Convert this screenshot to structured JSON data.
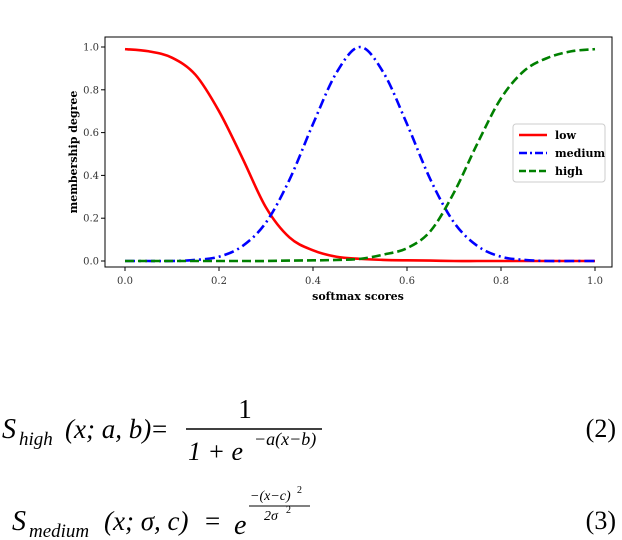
{
  "chart_data": {
    "type": "line",
    "xlabel": "softmax scores",
    "ylabel": "membership degree",
    "xlim": [
      0.0,
      1.0
    ],
    "ylim": [
      0.0,
      1.0
    ],
    "xticks": [
      "0.0",
      "0.2",
      "0.4",
      "0.6",
      "0.8",
      "1.0"
    ],
    "yticks": [
      "0.0",
      "0.2",
      "0.4",
      "0.6",
      "0.8",
      "1.0"
    ],
    "grid": false,
    "legend_position": "right",
    "x": [
      0.0,
      0.05,
      0.1,
      0.15,
      0.2,
      0.25,
      0.3,
      0.35,
      0.4,
      0.45,
      0.5,
      0.55,
      0.6,
      0.65,
      0.7,
      0.75,
      0.8,
      0.85,
      0.9,
      0.95,
      1.0
    ],
    "series": [
      {
        "name": "low",
        "color": "#ff0000",
        "style": "solid",
        "values": [
          0.99,
          0.98,
          0.95,
          0.87,
          0.7,
          0.48,
          0.25,
          0.11,
          0.05,
          0.02,
          0.01,
          0.005,
          0.003,
          0.002,
          0.0,
          0.0,
          0.0,
          0.0,
          0.0,
          0.0,
          0.0
        ]
      },
      {
        "name": "medium",
        "color": "#0000ff",
        "style": "dashdot",
        "values": [
          0.0,
          0.0,
          0.0,
          0.005,
          0.02,
          0.07,
          0.18,
          0.38,
          0.64,
          0.88,
          1.0,
          0.88,
          0.64,
          0.38,
          0.18,
          0.07,
          0.02,
          0.005,
          0.0,
          0.0,
          0.0
        ]
      },
      {
        "name": "high",
        "color": "#008000",
        "style": "dashed",
        "values": [
          0.0,
          0.0,
          0.0,
          0.0,
          0.0,
          0.0,
          0.0,
          0.002,
          0.003,
          0.005,
          0.01,
          0.03,
          0.06,
          0.14,
          0.32,
          0.55,
          0.76,
          0.89,
          0.95,
          0.98,
          0.99
        ]
      }
    ]
  },
  "equations": [
    {
      "lhs_name": "S",
      "lhs_sub": "high",
      "args": "(x; a, b)",
      "numerator": "1",
      "denominator_base": "1 + e",
      "denominator_exp": "−a(x−b)",
      "number": "(2)"
    },
    {
      "lhs_name": "S",
      "lhs_sub": "medium",
      "args": "(x; σ, c)",
      "base": "e",
      "exp_num": "−(x−c)",
      "exp_num_pow": "2",
      "exp_den": "2σ",
      "exp_den_pow": "2",
      "number": "(3)"
    }
  ]
}
